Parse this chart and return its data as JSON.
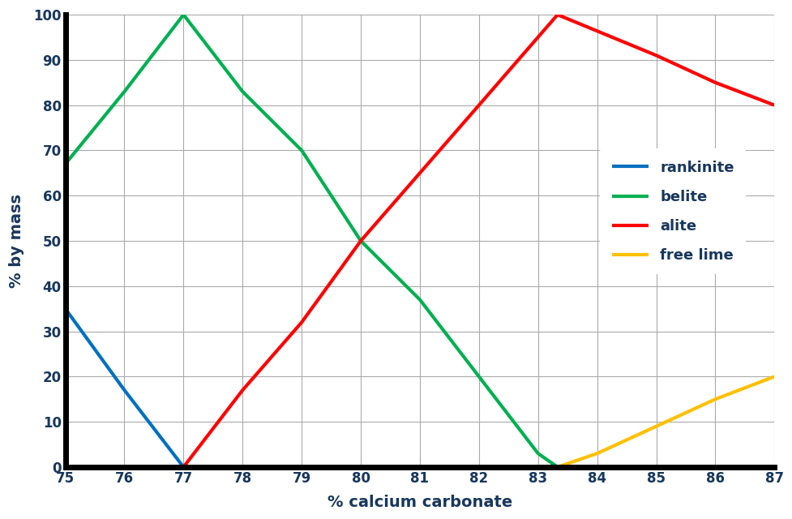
{
  "rankinite": {
    "x": [
      75,
      76,
      77
    ],
    "y": [
      35,
      17,
      0
    ],
    "color": "#0070C0",
    "label": "rankinite",
    "linewidth": 3.0
  },
  "belite": {
    "x": [
      75,
      76,
      77,
      78,
      79,
      80,
      81,
      82,
      83,
      83.33
    ],
    "y": [
      67,
      83,
      100,
      83,
      70,
      50,
      37,
      20,
      3,
      0
    ],
    "color": "#00B050",
    "label": "belite",
    "linewidth": 3.0
  },
  "alite": {
    "x": [
      77,
      78,
      79,
      80,
      81,
      82,
      83.33,
      85,
      86,
      87
    ],
    "y": [
      0,
      17,
      32,
      50,
      65,
      80,
      100,
      91,
      85,
      80
    ],
    "color": "#FF0000",
    "label": "alite",
    "linewidth": 3.0
  },
  "free_lime": {
    "x": [
      83.33,
      84,
      85,
      86,
      87
    ],
    "y": [
      0,
      3,
      9,
      15,
      20
    ],
    "color": "#FFC000",
    "label": "free lime",
    "linewidth": 3.0
  },
  "xlim": [
    75,
    87
  ],
  "ylim": [
    0,
    100
  ],
  "xlabel": "% calcium carbonate",
  "ylabel": "% by mass",
  "xticks": [
    75,
    76,
    77,
    78,
    79,
    80,
    81,
    82,
    83,
    84,
    85,
    86,
    87
  ],
  "yticks": [
    0,
    10,
    20,
    30,
    40,
    50,
    60,
    70,
    80,
    90,
    100
  ],
  "grid_color": "#AAAAAA",
  "background_color": "#FFFFFF",
  "spine_linewidth": 5.0,
  "legend_fontsize": 13,
  "legend_text_color": "#17375E",
  "axis_label_fontsize": 14,
  "tick_fontsize": 12,
  "tick_label_color": "#17375E",
  "axis_label_color": "#17375E"
}
